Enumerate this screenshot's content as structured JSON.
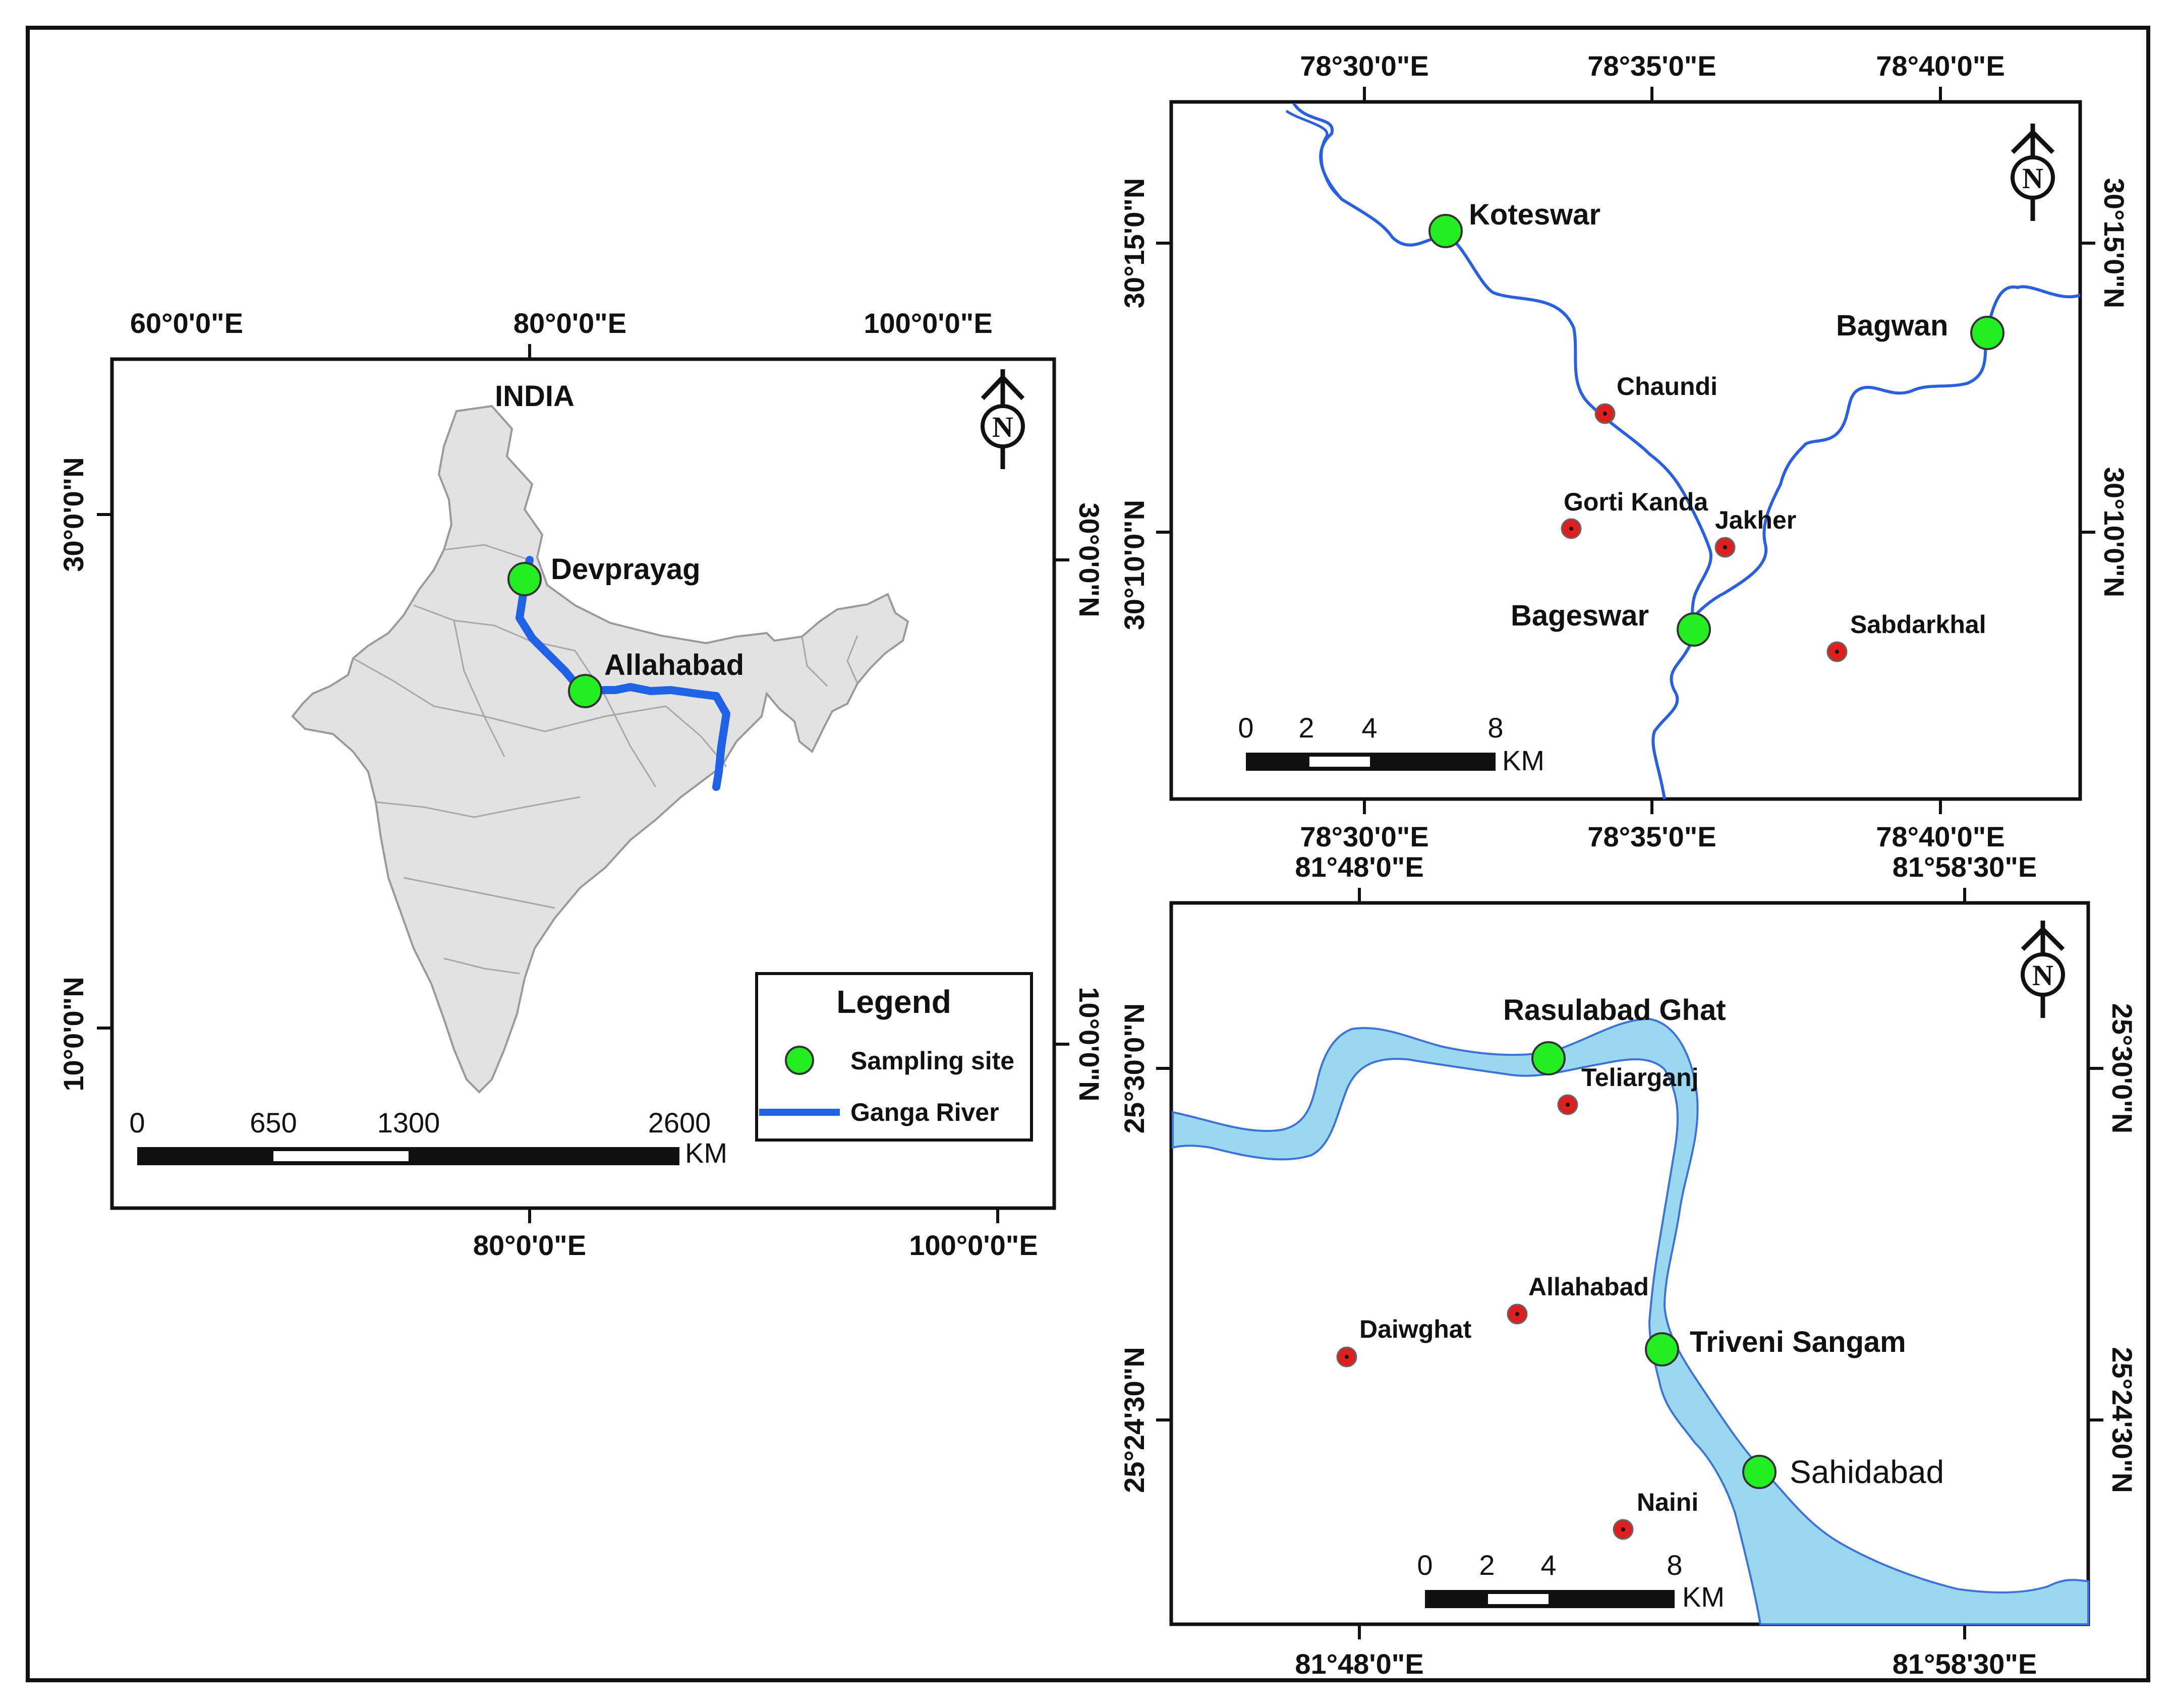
{
  "panels": {
    "india": {
      "title": "INDIA",
      "top_ticks": [
        "60°0'0\"E",
        "80°0'0\"E",
        "100°0'0\"E"
      ],
      "bottom_ticks": [
        "80°0'0\"E",
        "100°0'0\"E"
      ],
      "left_ticks": [
        "30°0'0\"N",
        "10°0'0\"N"
      ],
      "right_ticks": [
        "30°0'0\"N",
        "10°0'0\"N"
      ],
      "sites": [
        "Devprayag",
        "Allahabad"
      ],
      "scale": {
        "labels": [
          "0",
          "650",
          "1300",
          "2600"
        ],
        "unit": "KM"
      },
      "legend": {
        "title": "Legend",
        "items": [
          "Sampling site",
          "Ganga River"
        ]
      }
    },
    "devprayag": {
      "top_ticks": [
        "78°30'0\"E",
        "78°35'0\"E",
        "78°40'0\"E"
      ],
      "bottom_ticks": [
        "78°30'0\"E",
        "78°35'0\"E",
        "78°40'0\"E"
      ],
      "left_ticks": [
        "30°15'0\"N",
        "30°10'0\"N"
      ],
      "right_ticks": [
        "30°15'0\"N",
        "30°10'0\"N"
      ],
      "sampling_sites": [
        "Koteswar",
        "Bagwan",
        "Bageswar"
      ],
      "other_points": [
        "Chaundi",
        "Gorti Kanda",
        "Jakher",
        "Sabdarkhal"
      ],
      "scale": {
        "labels": [
          "0",
          "2",
          "4",
          "8"
        ],
        "unit": "KM"
      }
    },
    "allahabad": {
      "top_ticks": [
        "81°48'0\"E",
        "81°58'30\"E"
      ],
      "bottom_ticks": [
        "81°48'0\"E",
        "81°58'30\"E"
      ],
      "left_ticks": [
        "25°30'0\"N",
        "25°24'30\"N"
      ],
      "right_ticks": [
        "25°30'0\"N",
        "25°24'30\"N"
      ],
      "sampling_sites": [
        "Rasulabad Ghat",
        "Triveni Sangam",
        "Sahidabad"
      ],
      "other_points": [
        "Teliarganj",
        "Allahabad",
        "Daiwghat",
        "Naini"
      ],
      "scale": {
        "labels": [
          "0",
          "2",
          "4",
          "8"
        ],
        "unit": "KM"
      }
    }
  },
  "north_arrow_label": "N",
  "colors": {
    "sampling_site": "#22ee22",
    "other_point": "#dd1f1f",
    "river_line": "#2a5fe0",
    "river_fill": "#9ad8f0",
    "land": "#e2e2e2"
  }
}
